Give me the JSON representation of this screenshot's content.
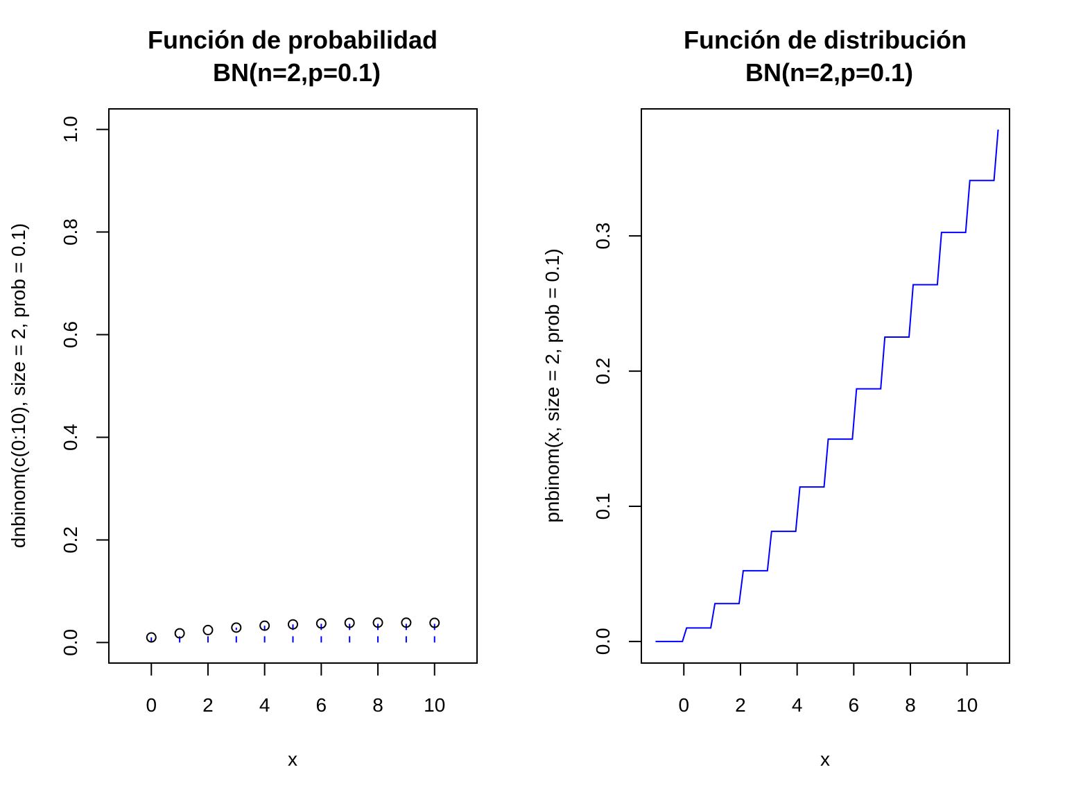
{
  "chart_data": [
    {
      "type": "scatter",
      "title": "Función de probabilidad",
      "subtitle": "BN(n=2,p=0.1)",
      "xlabel": "x",
      "ylabel": "dnbinom(c(0:10), size = 2, prob = 0.1)",
      "x": [
        0,
        1,
        2,
        3,
        4,
        5,
        6,
        7,
        8,
        9,
        10
      ],
      "y": [
        0.01,
        0.018,
        0.0243,
        0.02916,
        0.03281,
        0.03543,
        0.0372,
        0.03826,
        0.03874,
        0.03874,
        0.03835
      ],
      "xlim": [
        -1.5,
        11.5
      ],
      "ylim": [
        -0.04,
        1.04
      ],
      "xticks": [
        0,
        2,
        4,
        6,
        8,
        10
      ],
      "yticks": [
        0.0,
        0.2,
        0.4,
        0.6,
        0.8,
        1.0
      ],
      "ytick_labels": [
        "0.0",
        "0.2",
        "0.4",
        "0.6",
        "0.8",
        "1.0"
      ],
      "marker": "open-circle",
      "stem_color": "#0000ff",
      "stem_style": "dashed",
      "grid": false
    },
    {
      "type": "line",
      "step": true,
      "title": "Función de distribución",
      "subtitle": "BN(n=2,p=0.1)",
      "xlabel": "x",
      "ylabel": "pnbinom(x, size = 2, prob = 0.1)",
      "x": [
        -1,
        0,
        1,
        2,
        3,
        4,
        5,
        6,
        7,
        8,
        9,
        10,
        11
      ],
      "y": [
        0,
        0.01,
        0.028,
        0.0523,
        0.08146,
        0.11427,
        0.1497,
        0.1869,
        0.2252,
        0.2639,
        0.3026,
        0.341,
        0.3787
      ],
      "xlim": [
        -1.5,
        11.5
      ],
      "ylim": [
        -0.016,
        0.394
      ],
      "xticks": [
        0,
        2,
        4,
        6,
        8,
        10
      ],
      "yticks": [
        0.0,
        0.1,
        0.2,
        0.3
      ],
      "ytick_labels": [
        "0.0",
        "0.1",
        "0.2",
        "0.3"
      ],
      "line_color": "#0000ff",
      "grid": false
    }
  ]
}
